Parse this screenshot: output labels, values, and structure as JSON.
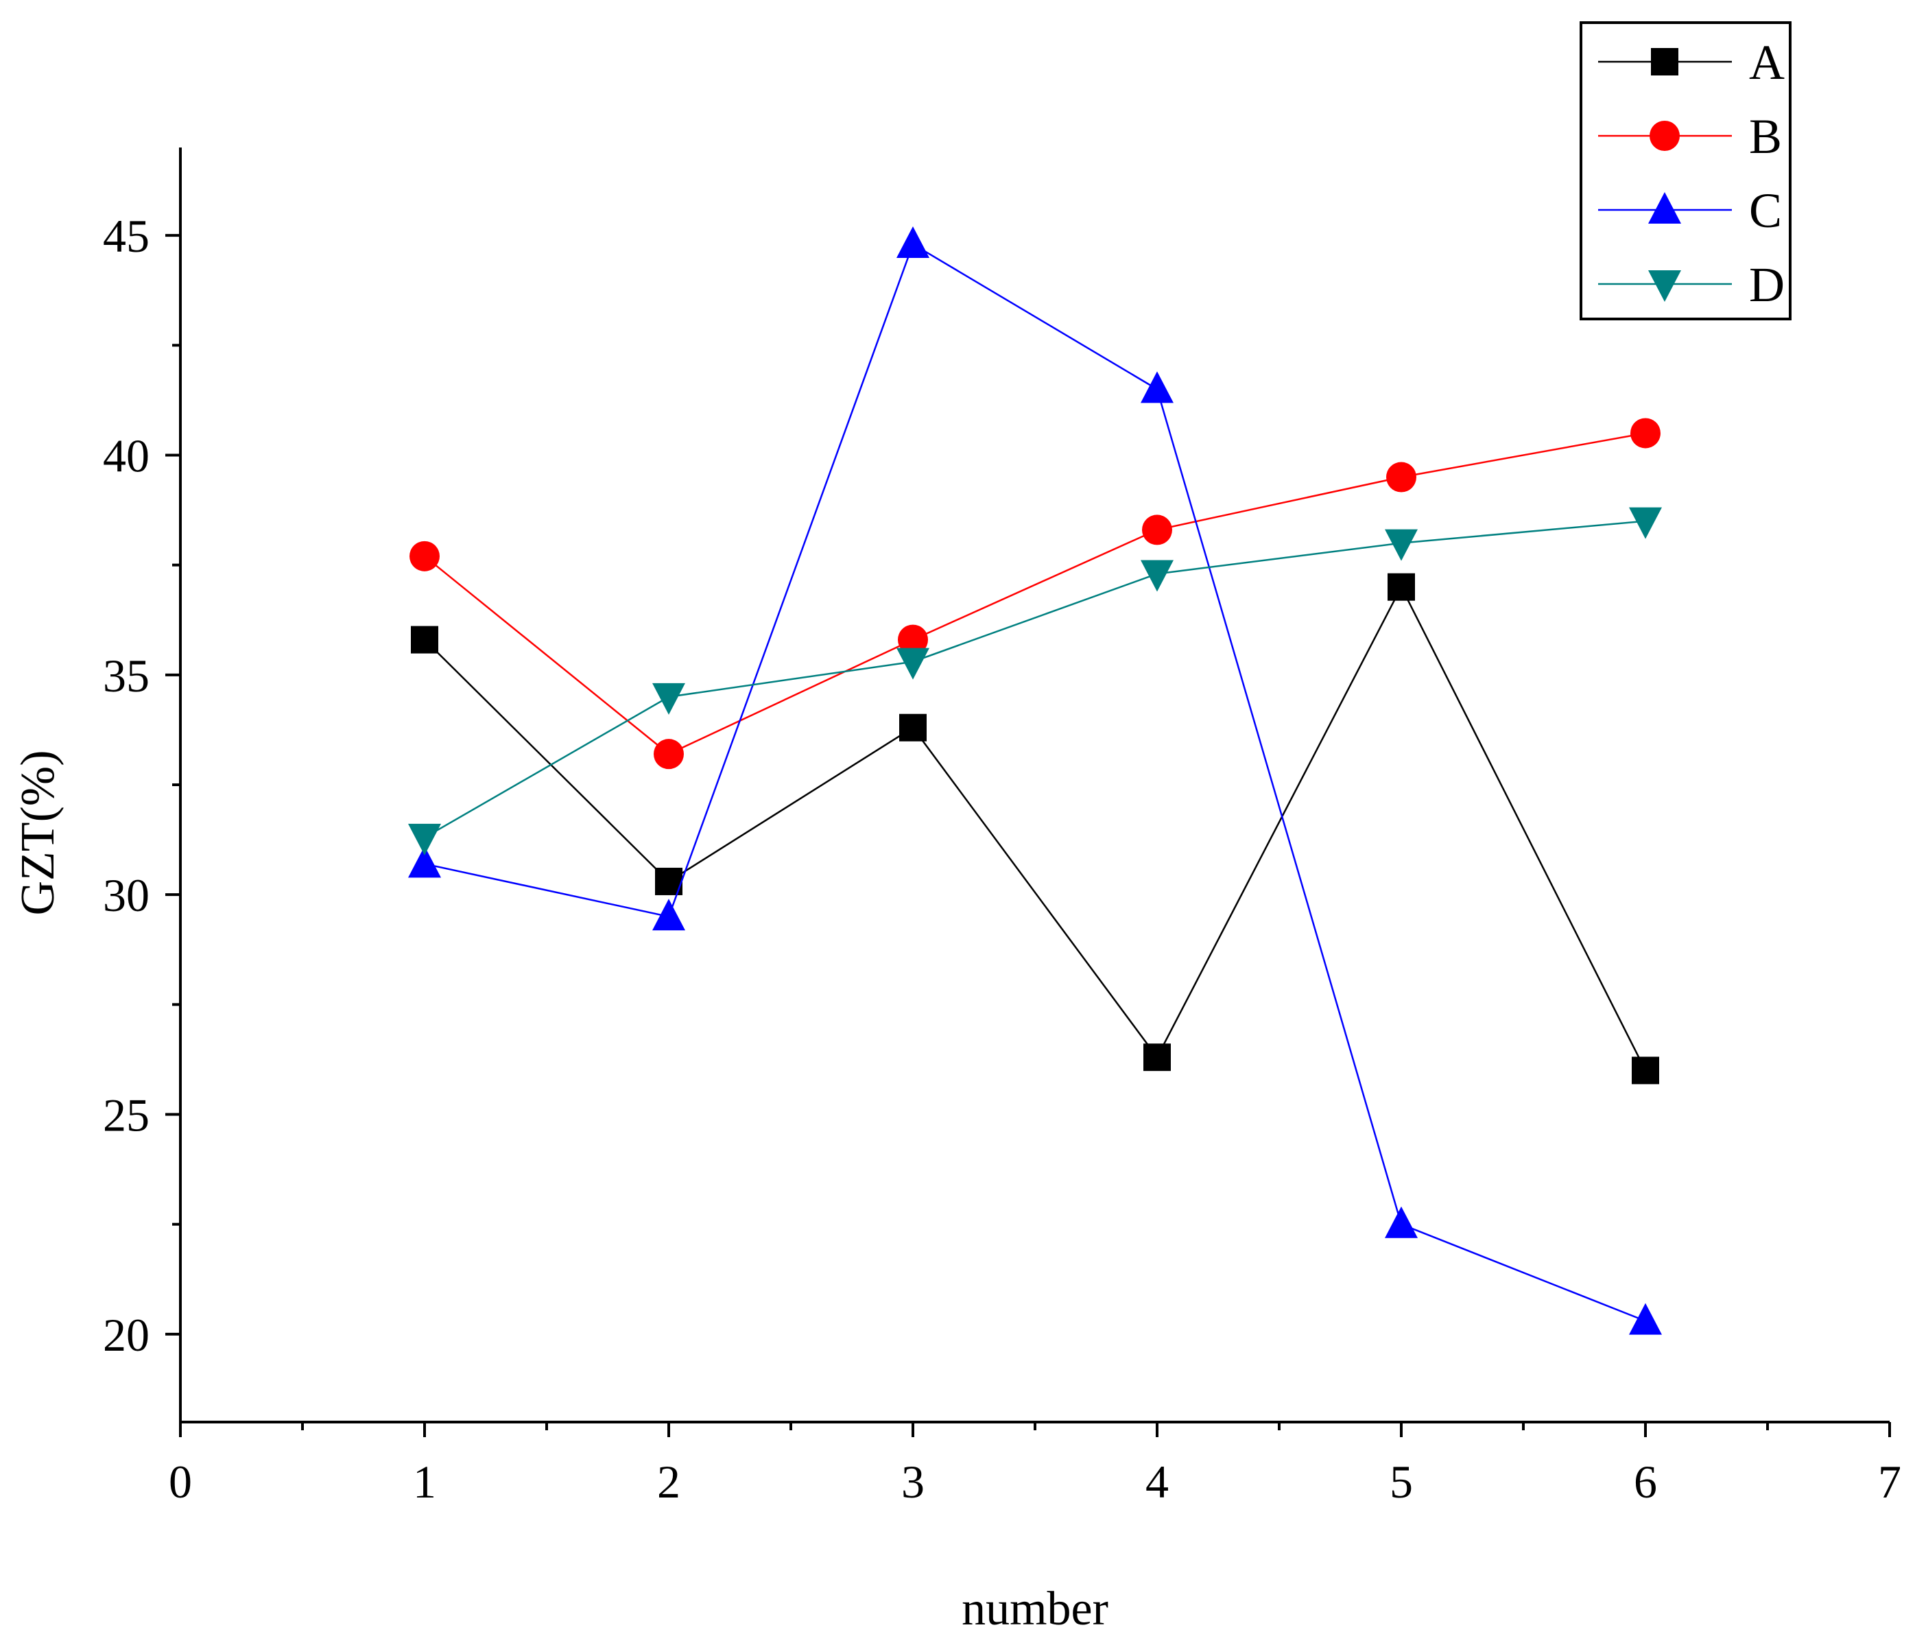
{
  "chart_data": {
    "type": "line",
    "title": "",
    "xlabel": "number",
    "ylabel": "GZT(%)",
    "xlim": [
      0,
      7
    ],
    "ylim": [
      18,
      47
    ],
    "x_ticks": [
      0,
      1,
      2,
      3,
      4,
      5,
      6,
      7
    ],
    "x_tick_labels": [
      "0",
      "1",
      "2",
      "3",
      "4",
      "5",
      "6",
      "7"
    ],
    "y_ticks": [
      20,
      25,
      30,
      35,
      40,
      45
    ],
    "y_tick_labels": [
      "20",
      "25",
      "30",
      "35",
      "40",
      "45"
    ],
    "x_minor_step": 0.5,
    "y_minor_step": 2.5,
    "grid": false,
    "legend_position": "top-right",
    "x": [
      1,
      2,
      3,
      4,
      5,
      6
    ],
    "series": [
      {
        "name": "A",
        "color": "#000000",
        "marker": "square",
        "values": [
          35.8,
          30.3,
          33.8,
          26.3,
          37.0,
          26.0
        ]
      },
      {
        "name": "B",
        "color": "#ff0000",
        "marker": "circle",
        "values": [
          37.7,
          33.2,
          35.8,
          38.3,
          39.5,
          40.5
        ]
      },
      {
        "name": "C",
        "color": "#0000ff",
        "marker": "triangle-up",
        "values": [
          30.7,
          29.5,
          44.8,
          41.5,
          22.5,
          20.3
        ]
      },
      {
        "name": "D",
        "color": "#008080",
        "marker": "triangle-down",
        "values": [
          31.3,
          34.5,
          35.3,
          37.3,
          38.0,
          38.5
        ]
      }
    ]
  }
}
